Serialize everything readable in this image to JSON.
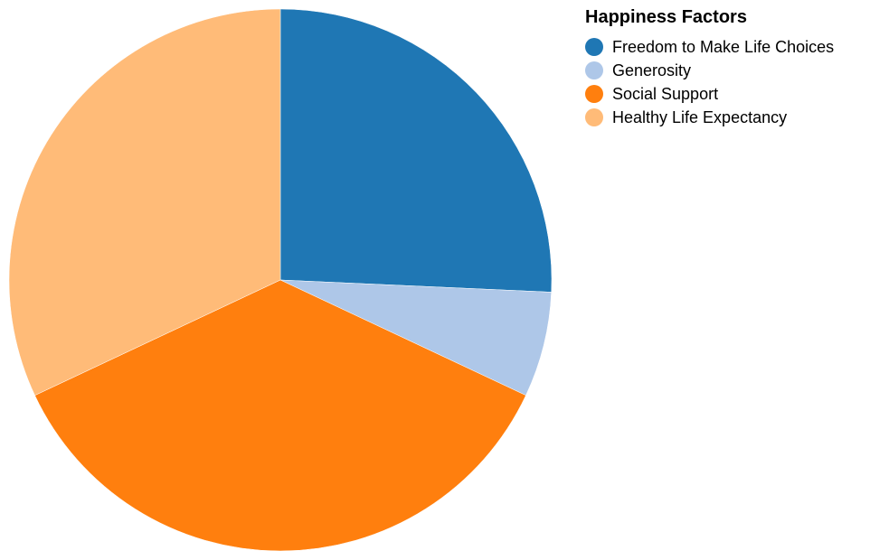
{
  "chart_data": {
    "type": "pie",
    "legend_title": "Happiness Factors",
    "legend_position": "right",
    "categories": [
      "Freedom to Make Life Choices",
      "Generosity",
      "Social Support",
      "Healthy Life Expectancy"
    ],
    "values": [
      0.9,
      0.22,
      1.26,
      1.12
    ],
    "colors": [
      "#1f77b4",
      "#aec7e8",
      "#ff7f0e",
      "#ffbb78"
    ]
  }
}
